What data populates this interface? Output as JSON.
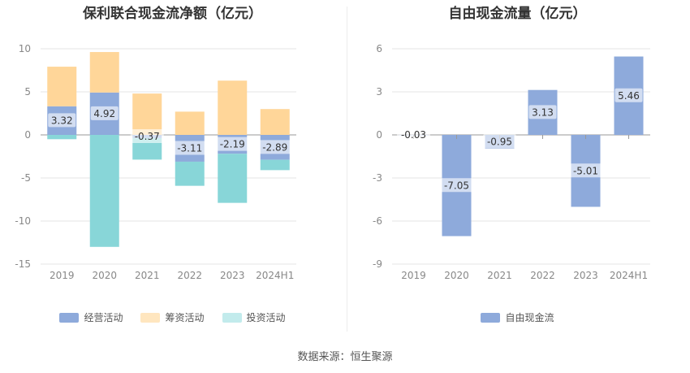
{
  "chart_data": [
    {
      "type": "bar",
      "title": "保利联合现金流净额（亿元）",
      "categories": [
        "2019",
        "2020",
        "2021",
        "2022",
        "2023",
        "2024H1"
      ],
      "ylim": [
        -15,
        10
      ],
      "yticks": [
        10,
        5,
        0,
        -5,
        -10,
        -15
      ],
      "stacked": true,
      "grid": true,
      "legend_position": "bottom",
      "series": [
        {
          "name": "经营活动",
          "color": "#8eaadb",
          "values": [
            3.32,
            4.92,
            -0.37,
            -3.11,
            -2.19,
            -2.89
          ]
        },
        {
          "name": "筹资活动",
          "color": "#ffd699",
          "values": [
            4.6,
            4.7,
            4.8,
            2.7,
            6.3,
            3.0
          ]
        },
        {
          "name": "投资活动",
          "color": "#88d6d8",
          "values": [
            -0.5,
            -13.0,
            -2.5,
            -2.8,
            -5.7,
            -1.2
          ]
        }
      ],
      "data_labels": [
        "3.32",
        "4.92",
        "-0.37",
        "-3.11",
        "-2.19",
        "-2.89"
      ]
    },
    {
      "type": "bar",
      "title": "自由现金流量（亿元）",
      "categories": [
        "2019",
        "2020",
        "2021",
        "2022",
        "2023",
        "2024H1"
      ],
      "ylim": [
        -9,
        6
      ],
      "yticks": [
        6,
        3,
        0,
        -3,
        -6,
        -9
      ],
      "grid": true,
      "legend_position": "bottom",
      "series": [
        {
          "name": "自由现金流",
          "color": "#8eaadb",
          "values": [
            -0.03,
            -7.05,
            -0.95,
            3.13,
            -5.01,
            5.46
          ]
        }
      ],
      "data_labels": [
        "-0.03",
        "-7.05",
        "-0.95",
        "3.13",
        "-5.01",
        "5.46"
      ]
    }
  ],
  "footer": {
    "source": "数据来源：恒生聚源"
  }
}
